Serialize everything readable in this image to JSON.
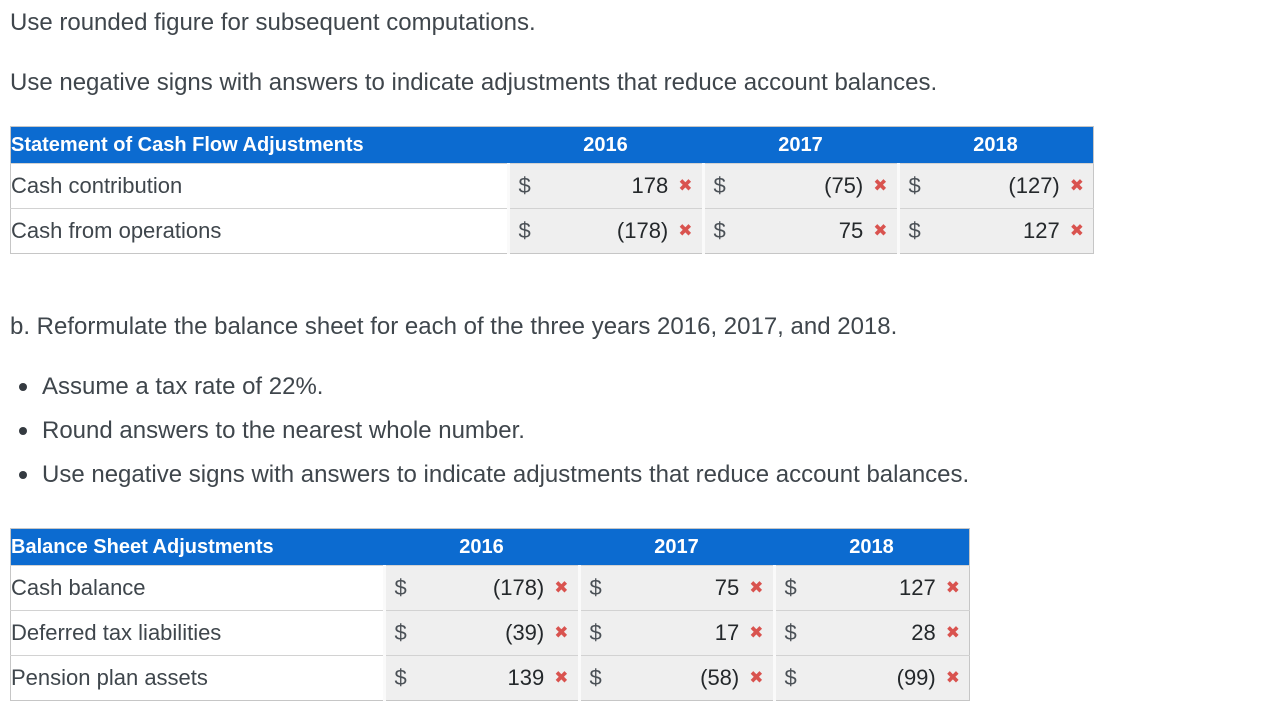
{
  "page": {
    "line1": "Use rounded figure for subsequent computations.",
    "line2": "Use negative signs with answers to indicate adjustments that reduce account balances.",
    "section_b": "b. Reformulate the balance sheet for each of the three years 2016, 2017, and 2018.",
    "bullets": [
      "Assume a tax rate of 22%.",
      "Round answers to the nearest whole number.",
      "Use negative signs with answers to indicate adjustments that reduce account balances."
    ]
  },
  "colors": {
    "header_bg": "#0c6bd0",
    "header_text": "#ffffff",
    "cell_bg": "#efefef",
    "label_bg": "#ffffff",
    "incorrect_red": "#d9534f",
    "body_text": "#3f464c"
  },
  "icons": {
    "wrong_mark": "✖"
  },
  "tables": [
    {
      "title": "Statement of Cash Flow Adjustments",
      "years": [
        "2016",
        "2017",
        "2018"
      ],
      "currency": "$",
      "rows": [
        {
          "label": "Cash contribution",
          "values": [
            "178",
            "(75)",
            "(127)"
          ],
          "marks": [
            "incorrect",
            "incorrect",
            "incorrect"
          ]
        },
        {
          "label": "Cash from operations",
          "values": [
            "(178)",
            "75",
            "127"
          ],
          "marks": [
            "incorrect",
            "incorrect",
            "incorrect"
          ]
        }
      ]
    },
    {
      "title": "Balance Sheet Adjustments",
      "years": [
        "2016",
        "2017",
        "2018"
      ],
      "currency": "$",
      "rows": [
        {
          "label": "Cash balance",
          "values": [
            "(178)",
            "75",
            "127"
          ],
          "marks": [
            "incorrect",
            "incorrect",
            "incorrect"
          ]
        },
        {
          "label": "Deferred tax liabilities",
          "values": [
            "(39)",
            "17",
            "28"
          ],
          "marks": [
            "incorrect",
            "incorrect",
            "incorrect"
          ]
        },
        {
          "label": "Pension plan assets",
          "values": [
            "139",
            "(58)",
            "(99)"
          ],
          "marks": [
            "incorrect",
            "incorrect",
            "incorrect"
          ]
        }
      ]
    }
  ]
}
